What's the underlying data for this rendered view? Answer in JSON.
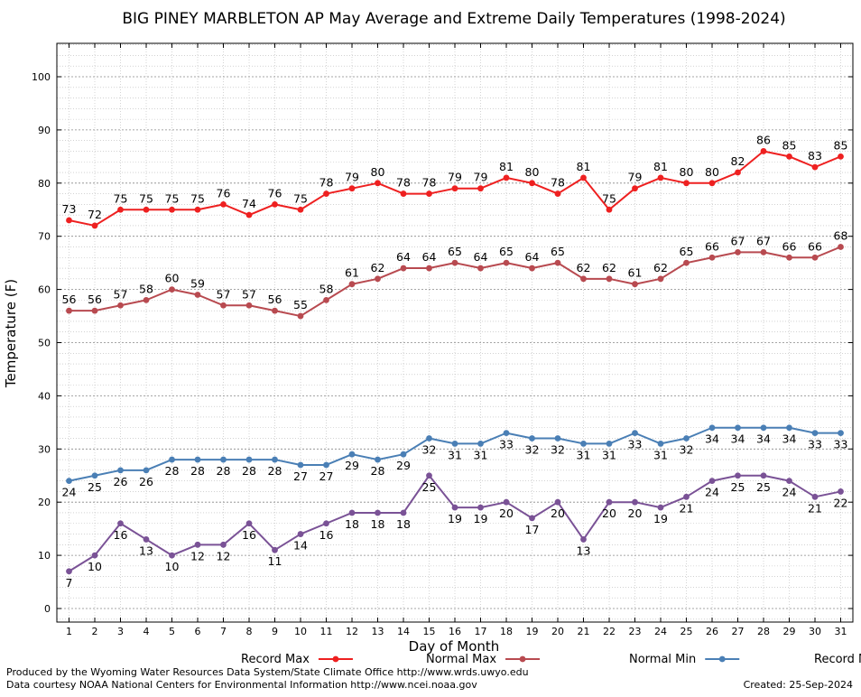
{
  "chart_data": {
    "type": "line",
    "title": "BIG PINEY MARBLETON AP May Average and Extreme Daily Temperatures (1998-2024)",
    "xlabel": "Day of Month",
    "ylabel": "Temperature (F)",
    "ylim": [
      -5,
      107
    ],
    "yticks": [
      0,
      10,
      20,
      30,
      40,
      50,
      60,
      70,
      80,
      90,
      100
    ],
    "x": [
      1,
      2,
      3,
      4,
      5,
      6,
      7,
      8,
      9,
      10,
      11,
      12,
      13,
      14,
      15,
      16,
      17,
      18,
      19,
      20,
      21,
      22,
      23,
      24,
      25,
      26,
      27,
      28,
      29,
      30,
      31
    ],
    "grid": true,
    "legend_position": "bottom",
    "series": [
      {
        "name": "Record Max",
        "color": "#ee2020",
        "label_pos": "above",
        "values": [
          73,
          72,
          75,
          75,
          75,
          75,
          76,
          74,
          76,
          75,
          78,
          79,
          80,
          78,
          78,
          79,
          79,
          81,
          80,
          78,
          81,
          75,
          79,
          81,
          80,
          80,
          82,
          86,
          85,
          83,
          85
        ]
      },
      {
        "name": "Normal Max",
        "color": "#b84a50",
        "label_pos": "above",
        "values": [
          56,
          56,
          57,
          58,
          60,
          59,
          57,
          57,
          56,
          55,
          58,
          61,
          62,
          64,
          64,
          65,
          64,
          65,
          64,
          65,
          62,
          62,
          61,
          62,
          65,
          66,
          67,
          67,
          66,
          66,
          68
        ]
      },
      {
        "name": "Normal Min",
        "color": "#4a7fb5",
        "label_pos": "below",
        "values": [
          24,
          25,
          26,
          26,
          28,
          28,
          28,
          28,
          28,
          27,
          27,
          29,
          28,
          29,
          32,
          31,
          31,
          33,
          32,
          32,
          31,
          31,
          33,
          31,
          32,
          34,
          34,
          34,
          34,
          33,
          33
        ]
      },
      {
        "name": "Record Min",
        "color": "#7a5296",
        "label_pos": "below",
        "values": [
          7,
          10,
          16,
          13,
          10,
          12,
          12,
          16,
          11,
          14,
          16,
          18,
          18,
          18,
          25,
          19,
          19,
          20,
          17,
          20,
          13,
          20,
          20,
          19,
          21,
          24,
          25,
          25,
          24,
          21,
          22
        ]
      }
    ]
  },
  "footer": {
    "produced_by": "Produced by the Wyoming Water Resources Data System/State Climate Office http://www.wrds.uwyo.edu",
    "courtesy": "Data courtesy NOAA National Centers for Environmental Information http://www.ncei.noaa.gov",
    "created": "Created:  25-Sep-2024"
  }
}
